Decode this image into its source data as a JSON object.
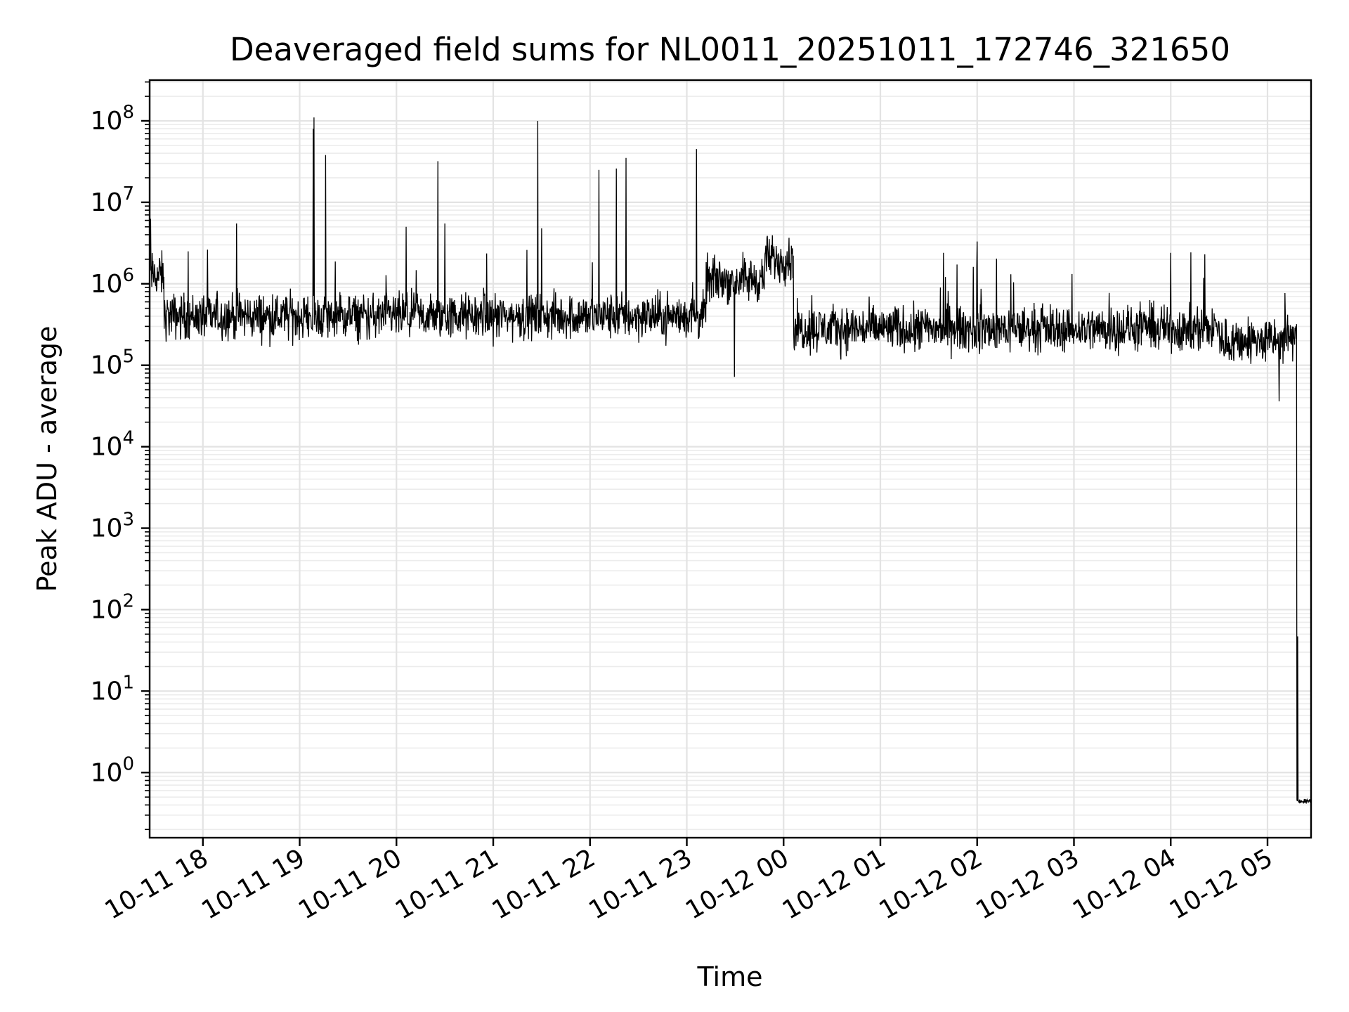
{
  "chart_data": {
    "type": "line",
    "title": "Deaveraged field sums for NL0011_20251011_172746_321650",
    "xlabel": "Time",
    "ylabel": "Peak ADU - average",
    "yscale": "log",
    "ylim_exponent": [
      -0.8,
      8.5
    ],
    "y_tick_exponents": [
      0,
      1,
      2,
      3,
      4,
      5,
      6,
      7,
      8
    ],
    "y_tick_base": "10",
    "xlim_hours_after_start": [
      -0.55,
      11.45
    ],
    "x_ticks": [
      {
        "hour": 0,
        "label": "10-11 18"
      },
      {
        "hour": 1,
        "label": "10-11 19"
      },
      {
        "hour": 2,
        "label": "10-11 20"
      },
      {
        "hour": 3,
        "label": "10-11 21"
      },
      {
        "hour": 4,
        "label": "10-11 22"
      },
      {
        "hour": 5,
        "label": "10-11 23"
      },
      {
        "hour": 6,
        "label": "10-12 00"
      },
      {
        "hour": 7,
        "label": "10-12 01"
      },
      {
        "hour": 8,
        "label": "10-12 02"
      },
      {
        "hour": 9,
        "label": "10-12 03"
      },
      {
        "hour": 10,
        "label": "10-12 04"
      },
      {
        "hour": 11,
        "label": "10-12 05"
      }
    ],
    "grid": true,
    "series": [
      {
        "name": "Peak ADU - average",
        "color": "#000000",
        "sample_interval_hours": 0.004,
        "time_start_hours": -0.54,
        "time_end_hours": 11.45,
        "baseline_segments": [
          {
            "from": -0.54,
            "to": -0.4,
            "log10_value": 6.1
          },
          {
            "from": -0.4,
            "to": 5.2,
            "log10_value": 5.6
          },
          {
            "from": 5.2,
            "to": 5.8,
            "log10_value": 6.05
          },
          {
            "from": 5.8,
            "to": 6.1,
            "log10_value": 6.3
          },
          {
            "from": 6.1,
            "to": 10.5,
            "log10_value": 5.45
          },
          {
            "from": 10.5,
            "to": 11.28,
            "log10_value": 5.3
          },
          {
            "from": 11.28,
            "to": 11.3,
            "log10_value": 5.5
          },
          {
            "from": 11.3,
            "to": 11.45,
            "log10_value": -0.35
          }
        ],
        "noise_amplitude_log10": 0.32,
        "spikes": [
          {
            "hour": 1.15,
            "value": 110000000
          },
          {
            "hour": 1.14,
            "value": 80000000
          },
          {
            "hour": 1.27,
            "value": 38000000
          },
          {
            "hour": 2.43,
            "value": 32000000
          },
          {
            "hour": 3.46,
            "value": 100000000
          },
          {
            "hour": 4.09,
            "value": 25000000
          },
          {
            "hour": 4.27,
            "value": 26000000
          },
          {
            "hour": 4.37,
            "value": 35000000
          },
          {
            "hour": 5.1,
            "value": 45000000
          },
          {
            "hour": -0.15,
            "value": 2500000
          },
          {
            "hour": 0.35,
            "value": 5500000
          },
          {
            "hour": 2.1,
            "value": 5000000
          },
          {
            "hour": 2.5,
            "value": 5500000
          },
          {
            "hour": 3.5,
            "value": 4800000
          },
          {
            "hour": 7.65,
            "value": 2400000
          },
          {
            "hour": 8.0,
            "value": 3300000
          },
          {
            "hour": 10.0,
            "value": 2400000
          },
          {
            "hour": 10.35,
            "value": 2300000
          }
        ],
        "dips": [
          {
            "hour": 5.49,
            "value": 72000.0
          },
          {
            "hour": 11.12,
            "value": 36000
          },
          {
            "hour": 11.31,
            "value": 47
          }
        ]
      }
    ]
  }
}
